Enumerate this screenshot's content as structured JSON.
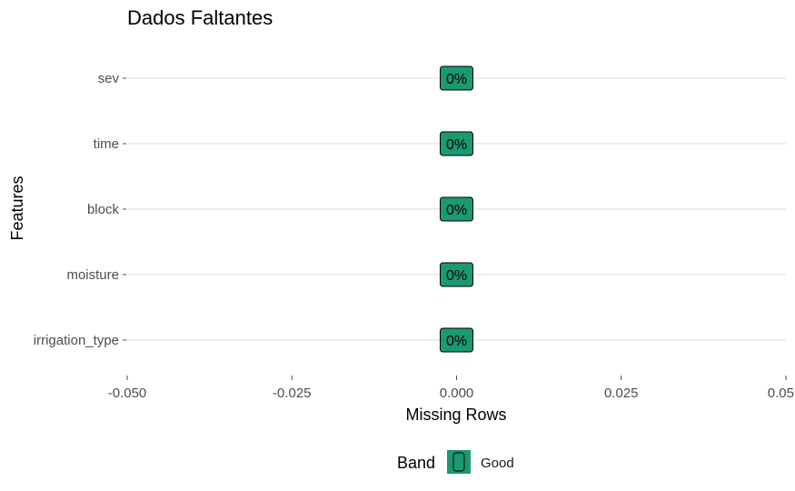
{
  "chart_data": {
    "type": "bar",
    "orientation": "horizontal",
    "title": "Dados Faltantes",
    "xlabel": "Missing Rows",
    "ylabel": "Features",
    "categories": [
      "sev",
      "time",
      "block",
      "moisture",
      "irrigation_type"
    ],
    "values": [
      0,
      0,
      0,
      0,
      0
    ],
    "data_labels": [
      "0%",
      "0%",
      "0%",
      "0%",
      "0%"
    ],
    "bands": [
      "Good",
      "Good",
      "Good",
      "Good",
      "Good"
    ],
    "xlim": [
      -0.05,
      0.05
    ],
    "x_ticks": [
      -0.05,
      -0.025,
      0,
      0.025,
      0.05
    ],
    "x_tick_labels": [
      "-0.050",
      "-0.025",
      "0.000",
      "0.025",
      "0.05"
    ],
    "grid": "horizontal-major",
    "legend": {
      "title": "Band",
      "placement": "bottom",
      "entries": [
        {
          "label": "Good",
          "color": "#1a9972"
        }
      ]
    },
    "colors": {
      "good": "#1a9972",
      "grid": "#d9d9d9",
      "tick": "#4d4d4d"
    }
  }
}
